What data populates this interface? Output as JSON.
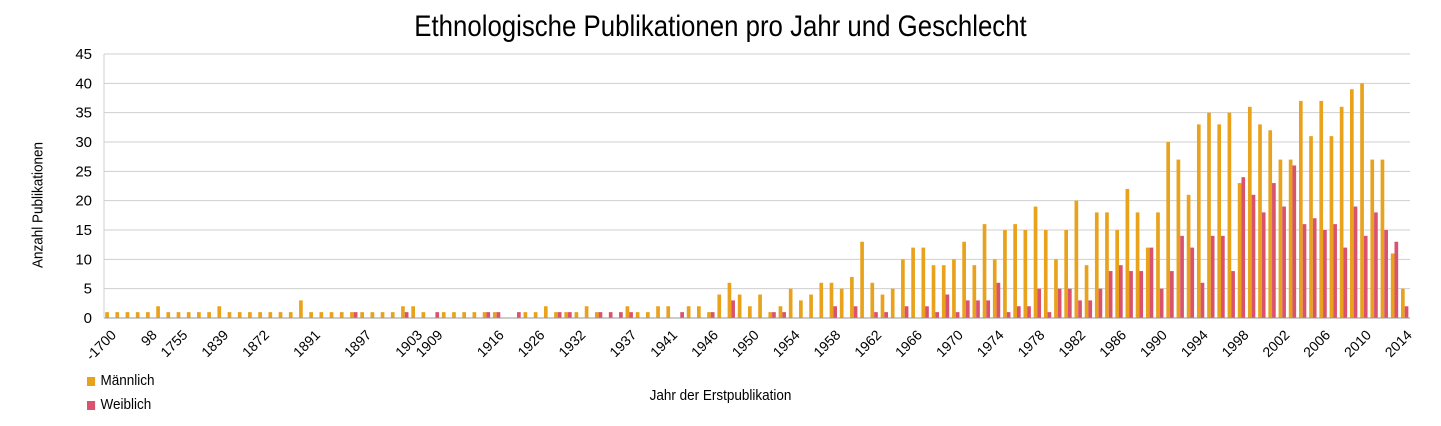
{
  "chart_data": {
    "type": "bar",
    "title": "Ethnologische Publikationen pro Jahr und Geschlecht",
    "xlabel": "Jahr der Erstpublikation",
    "ylabel": "Anzahl Publikationen",
    "ylim": [
      0,
      45
    ],
    "yticks": [
      0,
      5,
      10,
      15,
      20,
      25,
      30,
      35,
      40,
      45
    ],
    "grid": true,
    "legend_position": "bottom-left",
    "xtick_labels": [
      {
        "index": 0,
        "label": "-1700"
      },
      {
        "index": 4,
        "label": "98"
      },
      {
        "index": 7,
        "label": "1755"
      },
      {
        "index": 11,
        "label": "1839"
      },
      {
        "index": 15,
        "label": "1872"
      },
      {
        "index": 20,
        "label": "1891"
      },
      {
        "index": 25,
        "label": "1897"
      },
      {
        "index": 30,
        "label": "1903"
      },
      {
        "index": 32,
        "label": "1909"
      },
      {
        "index": 38,
        "label": "1916"
      },
      {
        "index": 42,
        "label": "1926"
      },
      {
        "index": 46,
        "label": "1932"
      },
      {
        "index": 51,
        "label": "1937"
      },
      {
        "index": 55,
        "label": "1941"
      },
      {
        "index": 59,
        "label": "1946"
      },
      {
        "index": 63,
        "label": "1950"
      },
      {
        "index": 67,
        "label": "1954"
      },
      {
        "index": 71,
        "label": "1958"
      },
      {
        "index": 75,
        "label": "1962"
      },
      {
        "index": 79,
        "label": "1966"
      },
      {
        "index": 83,
        "label": "1970"
      },
      {
        "index": 87,
        "label": "1974"
      },
      {
        "index": 91,
        "label": "1978"
      },
      {
        "index": 95,
        "label": "1982"
      },
      {
        "index": 99,
        "label": "1986"
      },
      {
        "index": 103,
        "label": "1990"
      },
      {
        "index": 107,
        "label": "1994"
      },
      {
        "index": 111,
        "label": "1998"
      },
      {
        "index": 115,
        "label": "2002"
      },
      {
        "index": 119,
        "label": "2006"
      },
      {
        "index": 123,
        "label": "2010"
      },
      {
        "index": 127,
        "label": "2014"
      }
    ],
    "series": [
      {
        "name": "Männlich",
        "color": "#e8a21c",
        "values": [
          1,
          1,
          1,
          1,
          1,
          2,
          1,
          1,
          1,
          1,
          1,
          2,
          1,
          1,
          1,
          1,
          1,
          1,
          1,
          3,
          1,
          1,
          1,
          1,
          1,
          1,
          1,
          1,
          1,
          2,
          2,
          1,
          0,
          1,
          1,
          1,
          1,
          1,
          1,
          0,
          0,
          1,
          1,
          2,
          1,
          1,
          1,
          2,
          1,
          0,
          0,
          2,
          1,
          1,
          2,
          2,
          0,
          2,
          2,
          1,
          4,
          6,
          4,
          2,
          4,
          1,
          2,
          5,
          3,
          4,
          6,
          6,
          5,
          7,
          13,
          6,
          4,
          5,
          10,
          12,
          12,
          9,
          9,
          10,
          13,
          9,
          16,
          10,
          15,
          16,
          15,
          19,
          15,
          10,
          15,
          20,
          9,
          18,
          18,
          15,
          22,
          18,
          12,
          18,
          30,
          27,
          21,
          33,
          35,
          33,
          35,
          23,
          36,
          33,
          32,
          27,
          27,
          37,
          31,
          37,
          31,
          36,
          39,
          40,
          27,
          27,
          11,
          5
        ]
      },
      {
        "name": "Weiblich",
        "color": "#d9526e",
        "values": [
          0,
          0,
          0,
          0,
          0,
          0,
          0,
          0,
          0,
          0,
          0,
          0,
          0,
          0,
          0,
          0,
          0,
          0,
          0,
          0,
          0,
          0,
          0,
          0,
          1,
          0,
          0,
          0,
          0,
          1,
          0,
          0,
          1,
          0,
          0,
          0,
          0,
          1,
          1,
          0,
          1,
          0,
          0,
          0,
          1,
          1,
          0,
          0,
          1,
          1,
          1,
          1,
          0,
          0,
          0,
          0,
          1,
          0,
          0,
          1,
          0,
          3,
          0,
          0,
          0,
          1,
          1,
          0,
          0,
          0,
          0,
          2,
          0,
          2,
          0,
          1,
          1,
          0,
          2,
          0,
          2,
          1,
          4,
          1,
          3,
          3,
          3,
          6,
          1,
          2,
          2,
          5,
          1,
          5,
          5,
          3,
          3,
          5,
          8,
          9,
          8,
          8,
          12,
          5,
          8,
          14,
          12,
          6,
          14,
          14,
          8,
          24,
          21,
          18,
          23,
          19,
          26,
          16,
          17,
          15,
          16,
          12,
          19,
          14,
          18,
          15,
          13,
          2
        ]
      }
    ]
  }
}
